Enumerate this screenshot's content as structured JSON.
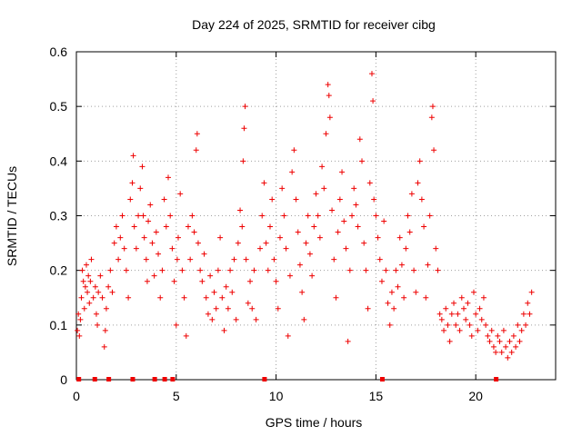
{
  "chart_data": {
    "type": "scatter",
    "title": "Day 224 of 2025, SRMTID for receiver cibg",
    "xlabel": "GPS time / hours",
    "ylabel": "SRMTID / TECUs",
    "xlim": [
      0,
      24
    ],
    "ylim": [
      0,
      0.6
    ],
    "xticks": [
      0,
      5,
      10,
      15,
      20
    ],
    "yticks": [
      0,
      0.1,
      0.2,
      0.3,
      0.4,
      0.5,
      0.6
    ],
    "xtick_labels": [
      "0",
      "5",
      "10",
      "15",
      "20"
    ],
    "ytick_labels": [
      "0",
      "0.1",
      "0.2",
      "0.3",
      "0.4",
      "0.5",
      "0.6"
    ],
    "grid": true,
    "marker": "+",
    "color": "#ee0000",
    "series": [
      {
        "name": "SRMTID",
        "points": [
          [
            0.05,
            0.09
          ],
          [
            0.1,
            0.12
          ],
          [
            0.15,
            0.08
          ],
          [
            0.2,
            0.11
          ],
          [
            0.25,
            0.15
          ],
          [
            0.3,
            0.2
          ],
          [
            0.35,
            0.18
          ],
          [
            0.4,
            0.13
          ],
          [
            0.45,
            0.17
          ],
          [
            0.5,
            0.21
          ],
          [
            0.55,
            0.16
          ],
          [
            0.6,
            0.19
          ],
          [
            0.65,
            0.14
          ],
          [
            0.7,
            0.18
          ],
          [
            0.75,
            0.22
          ],
          [
            0.85,
            0.15
          ],
          [
            0.95,
            0.17
          ],
          [
            1.0,
            0.12
          ],
          [
            1.05,
            0.1
          ],
          [
            1.1,
            0.16
          ],
          [
            1.2,
            0.19
          ],
          [
            1.3,
            0.15
          ],
          [
            1.4,
            0.06
          ],
          [
            1.45,
            0.09
          ],
          [
            1.5,
            0.13
          ],
          [
            1.6,
            0.17
          ],
          [
            1.7,
            0.2
          ],
          [
            1.8,
            0.16
          ],
          [
            1.9,
            0.25
          ],
          [
            2.0,
            0.28
          ],
          [
            2.1,
            0.22
          ],
          [
            2.2,
            0.26
          ],
          [
            2.3,
            0.3
          ],
          [
            2.4,
            0.24
          ],
          [
            2.5,
            0.2
          ],
          [
            2.6,
            0.15
          ],
          [
            2.7,
            0.33
          ],
          [
            2.8,
            0.36
          ],
          [
            2.85,
            0.41
          ],
          [
            2.9,
            0.28
          ],
          [
            3.0,
            0.24
          ],
          [
            3.1,
            0.3
          ],
          [
            3.2,
            0.35
          ],
          [
            3.3,
            0.39
          ],
          [
            3.35,
            0.3
          ],
          [
            3.4,
            0.26
          ],
          [
            3.5,
            0.22
          ],
          [
            3.55,
            0.18
          ],
          [
            3.6,
            0.29
          ],
          [
            3.7,
            0.32
          ],
          [
            3.8,
            0.25
          ],
          [
            3.9,
            0.19
          ],
          [
            4.0,
            0.27
          ],
          [
            4.1,
            0.23
          ],
          [
            4.2,
            0.15
          ],
          [
            4.3,
            0.2
          ],
          [
            4.4,
            0.33
          ],
          [
            4.5,
            0.28
          ],
          [
            4.6,
            0.37
          ],
          [
            4.7,
            0.3
          ],
          [
            4.8,
            0.24
          ],
          [
            4.9,
            0.18
          ],
          [
            5.0,
            0.1
          ],
          [
            5.05,
            0.22
          ],
          [
            5.1,
            0.26
          ],
          [
            5.2,
            0.34
          ],
          [
            5.3,
            0.2
          ],
          [
            5.4,
            0.15
          ],
          [
            5.5,
            0.08
          ],
          [
            5.6,
            0.28
          ],
          [
            5.7,
            0.22
          ],
          [
            5.8,
            0.3
          ],
          [
            5.9,
            0.27
          ],
          [
            6.0,
            0.42
          ],
          [
            6.05,
            0.45
          ],
          [
            6.1,
            0.25
          ],
          [
            6.2,
            0.2
          ],
          [
            6.3,
            0.18
          ],
          [
            6.4,
            0.23
          ],
          [
            6.5,
            0.15
          ],
          [
            6.6,
            0.12
          ],
          [
            6.7,
            0.19
          ],
          [
            6.8,
            0.11
          ],
          [
            6.9,
            0.16
          ],
          [
            7.0,
            0.13
          ],
          [
            7.1,
            0.2
          ],
          [
            7.2,
            0.26
          ],
          [
            7.3,
            0.15
          ],
          [
            7.4,
            0.09
          ],
          [
            7.5,
            0.17
          ],
          [
            7.6,
            0.13
          ],
          [
            7.7,
            0.2
          ],
          [
            7.8,
            0.16
          ],
          [
            7.9,
            0.22
          ],
          [
            8.0,
            0.11
          ],
          [
            8.1,
            0.25
          ],
          [
            8.2,
            0.31
          ],
          [
            8.3,
            0.28
          ],
          [
            8.35,
            0.4
          ],
          [
            8.4,
            0.46
          ],
          [
            8.45,
            0.5
          ],
          [
            8.5,
            0.22
          ],
          [
            8.6,
            0.14
          ],
          [
            8.7,
            0.18
          ],
          [
            8.8,
            0.13
          ],
          [
            8.9,
            0.2
          ],
          [
            9.0,
            0.11
          ],
          [
            9.2,
            0.24
          ],
          [
            9.3,
            0.3
          ],
          [
            9.4,
            0.36
          ],
          [
            9.5,
            0.25
          ],
          [
            9.6,
            0.2
          ],
          [
            9.7,
            0.28
          ],
          [
            9.8,
            0.33
          ],
          [
            9.9,
            0.22
          ],
          [
            10.0,
            0.18
          ],
          [
            10.1,
            0.13
          ],
          [
            10.2,
            0.26
          ],
          [
            10.3,
            0.35
          ],
          [
            10.4,
            0.3
          ],
          [
            10.5,
            0.24
          ],
          [
            10.6,
            0.08
          ],
          [
            10.7,
            0.19
          ],
          [
            10.8,
            0.38
          ],
          [
            10.9,
            0.42
          ],
          [
            11.0,
            0.33
          ],
          [
            11.1,
            0.27
          ],
          [
            11.2,
            0.21
          ],
          [
            11.3,
            0.16
          ],
          [
            11.4,
            0.11
          ],
          [
            11.5,
            0.25
          ],
          [
            11.6,
            0.3
          ],
          [
            11.7,
            0.23
          ],
          [
            11.8,
            0.19
          ],
          [
            11.9,
            0.28
          ],
          [
            12.0,
            0.34
          ],
          [
            12.1,
            0.3
          ],
          [
            12.2,
            0.26
          ],
          [
            12.3,
            0.39
          ],
          [
            12.4,
            0.35
          ],
          [
            12.5,
            0.45
          ],
          [
            12.6,
            0.54
          ],
          [
            12.65,
            0.52
          ],
          [
            12.7,
            0.48
          ],
          [
            12.8,
            0.31
          ],
          [
            12.9,
            0.22
          ],
          [
            13.0,
            0.15
          ],
          [
            13.1,
            0.27
          ],
          [
            13.2,
            0.33
          ],
          [
            13.3,
            0.38
          ],
          [
            13.4,
            0.29
          ],
          [
            13.5,
            0.24
          ],
          [
            13.6,
            0.07
          ],
          [
            13.7,
            0.2
          ],
          [
            13.8,
            0.3
          ],
          [
            13.9,
            0.35
          ],
          [
            14.0,
            0.32
          ],
          [
            14.1,
            0.28
          ],
          [
            14.2,
            0.44
          ],
          [
            14.3,
            0.4
          ],
          [
            14.4,
            0.25
          ],
          [
            14.5,
            0.2
          ],
          [
            14.6,
            0.13
          ],
          [
            14.7,
            0.36
          ],
          [
            14.8,
            0.56
          ],
          [
            14.85,
            0.51
          ],
          [
            14.9,
            0.33
          ],
          [
            15.0,
            0.3
          ],
          [
            15.1,
            0.26
          ],
          [
            15.2,
            0.22
          ],
          [
            15.3,
            0.18
          ],
          [
            15.4,
            0.29
          ],
          [
            15.5,
            0.2
          ],
          [
            15.6,
            0.14
          ],
          [
            15.7,
            0.1
          ],
          [
            15.8,
            0.16
          ],
          [
            15.9,
            0.13
          ],
          [
            16.0,
            0.2
          ],
          [
            16.1,
            0.17
          ],
          [
            16.2,
            0.26
          ],
          [
            16.3,
            0.21
          ],
          [
            16.4,
            0.15
          ],
          [
            16.5,
            0.24
          ],
          [
            16.6,
            0.3
          ],
          [
            16.7,
            0.27
          ],
          [
            16.8,
            0.34
          ],
          [
            16.9,
            0.2
          ],
          [
            17.0,
            0.16
          ],
          [
            17.1,
            0.36
          ],
          [
            17.2,
            0.4
          ],
          [
            17.3,
            0.33
          ],
          [
            17.4,
            0.28
          ],
          [
            17.5,
            0.15
          ],
          [
            17.6,
            0.21
          ],
          [
            17.7,
            0.3
          ],
          [
            17.8,
            0.48
          ],
          [
            17.85,
            0.5
          ],
          [
            17.9,
            0.42
          ],
          [
            18.0,
            0.24
          ],
          [
            18.1,
            0.2
          ],
          [
            18.2,
            0.12
          ],
          [
            18.3,
            0.11
          ],
          [
            18.4,
            0.09
          ],
          [
            18.5,
            0.13
          ],
          [
            18.6,
            0.1
          ],
          [
            18.7,
            0.07
          ],
          [
            18.8,
            0.12
          ],
          [
            18.9,
            0.14
          ],
          [
            19.0,
            0.1
          ],
          [
            19.1,
            0.12
          ],
          [
            19.2,
            0.09
          ],
          [
            19.3,
            0.15
          ],
          [
            19.4,
            0.13
          ],
          [
            19.5,
            0.11
          ],
          [
            19.6,
            0.14
          ],
          [
            19.7,
            0.1
          ],
          [
            19.8,
            0.08
          ],
          [
            19.9,
            0.16
          ],
          [
            20.0,
            0.12
          ],
          [
            20.1,
            0.09
          ],
          [
            20.2,
            0.13
          ],
          [
            20.3,
            0.11
          ],
          [
            20.4,
            0.15
          ],
          [
            20.5,
            0.1
          ],
          [
            20.6,
            0.08
          ],
          [
            20.7,
            0.07
          ],
          [
            20.8,
            0.09
          ],
          [
            20.9,
            0.06
          ],
          [
            21.0,
            0.05
          ],
          [
            21.1,
            0.08
          ],
          [
            21.2,
            0.07
          ],
          [
            21.3,
            0.05
          ],
          [
            21.4,
            0.09
          ],
          [
            21.5,
            0.06
          ],
          [
            21.6,
            0.04
          ],
          [
            21.7,
            0.07
          ],
          [
            21.8,
            0.05
          ],
          [
            21.9,
            0.08
          ],
          [
            22.0,
            0.06
          ],
          [
            22.1,
            0.1
          ],
          [
            22.2,
            0.07
          ],
          [
            22.3,
            0.09
          ],
          [
            22.4,
            0.12
          ],
          [
            22.5,
            0.1
          ],
          [
            22.6,
            0.14
          ],
          [
            22.7,
            0.12
          ],
          [
            22.8,
            0.16
          ]
        ]
      }
    ],
    "zero_points_x": [
      0.1,
      0.9,
      1.6,
      2.8,
      3.9,
      4.4,
      4.8,
      9.4,
      15.3,
      21.0
    ]
  }
}
